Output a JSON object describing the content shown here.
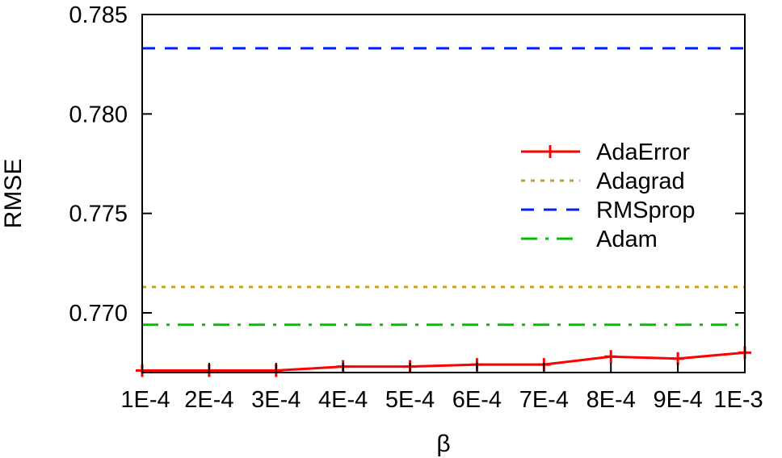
{
  "chart_data": {
    "type": "line",
    "xlabel": "β",
    "ylabel": "RMSE",
    "categories": [
      "1E-4",
      "2E-4",
      "3E-4",
      "4E-4",
      "5E-4",
      "6E-4",
      "7E-4",
      "8E-4",
      "9E-4",
      "1E-3"
    ],
    "ylim": [
      0.767,
      0.785
    ],
    "yticks": [
      "0.785",
      "0.780",
      "0.775",
      "0.770"
    ],
    "ytick_values": [
      0.785,
      0.78,
      0.775,
      0.77
    ],
    "grid": false,
    "legend_position": "right",
    "series": [
      {
        "name": "AdaError",
        "style": "solid-with-plus-markers",
        "color": "#ff0000",
        "values": [
          0.7671,
          0.7671,
          0.7671,
          0.7673,
          0.7673,
          0.7674,
          0.7674,
          0.7678,
          0.7677,
          0.768
        ]
      },
      {
        "name": "Adagrad",
        "style": "dotted",
        "color": "#c8a020",
        "values": [
          0.7713,
          0.7713,
          0.7713,
          0.7713,
          0.7713,
          0.7713,
          0.7713,
          0.7713,
          0.7713,
          0.7713
        ]
      },
      {
        "name": "RMSprop",
        "style": "dashed",
        "color": "#0020ff",
        "values": [
          0.7833,
          0.7833,
          0.7833,
          0.7833,
          0.7833,
          0.7833,
          0.7833,
          0.7833,
          0.7833,
          0.7833
        ]
      },
      {
        "name": "Adam",
        "style": "dash-dot",
        "color": "#00c000",
        "values": [
          0.7694,
          0.7694,
          0.7694,
          0.7694,
          0.7694,
          0.7694,
          0.7694,
          0.7694,
          0.7694,
          0.7694
        ]
      }
    ]
  }
}
